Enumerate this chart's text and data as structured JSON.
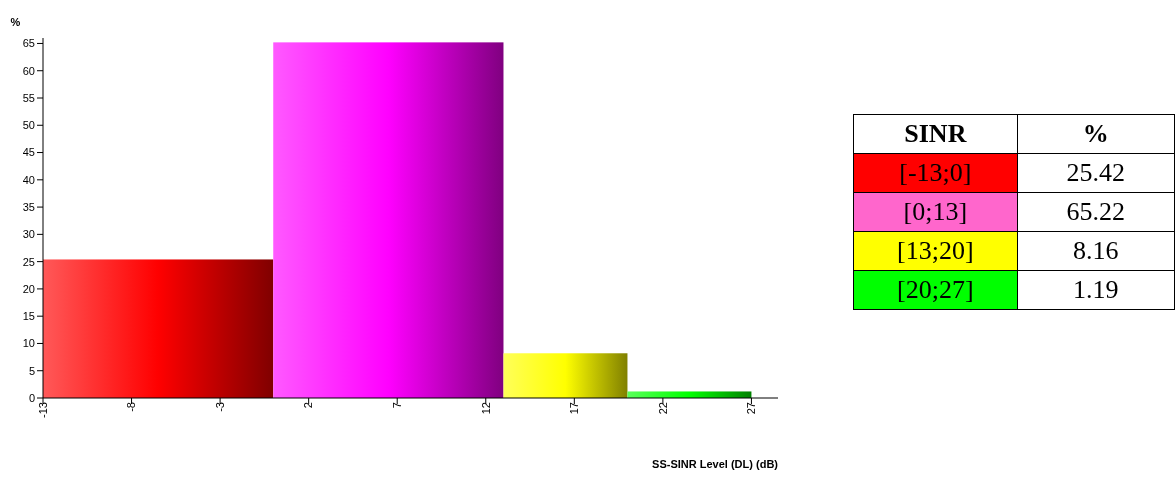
{
  "chart_data": [
    {
      "type": "histogram",
      "xlabel": "SS-SINR Level (DL) (dB)",
      "ylabel": "%",
      "bins": [
        -13,
        0,
        13,
        20,
        27
      ],
      "values": [
        25.4,
        65.2,
        8.2,
        1.2
      ],
      "colors": [
        "#ff0000",
        "#ff00ff",
        "#ffff00",
        "#00ff00"
      ],
      "xlim": [
        -13,
        28.5
      ],
      "xticks": [
        -13,
        -8,
        -3,
        2,
        7,
        12,
        17,
        22,
        27
      ],
      "ylim": [
        0,
        66
      ],
      "yticks": [
        0,
        5,
        10,
        15,
        20,
        25,
        30,
        35,
        40,
        45,
        50,
        55,
        60,
        65
      ],
      "grid": false,
      "legend": false
    },
    {
      "type": "other",
      "annotations": [
        "SINR",
        "%",
        "[-13;0]",
        "25.42",
        "[0;13]",
        "65.22",
        "[13;20]",
        "8.16",
        "[20;27]",
        "1.19"
      ],
      "colors": [
        "#ff0000",
        "#ff66cc",
        "#ffff00",
        "#00ff00"
      ]
    }
  ]
}
